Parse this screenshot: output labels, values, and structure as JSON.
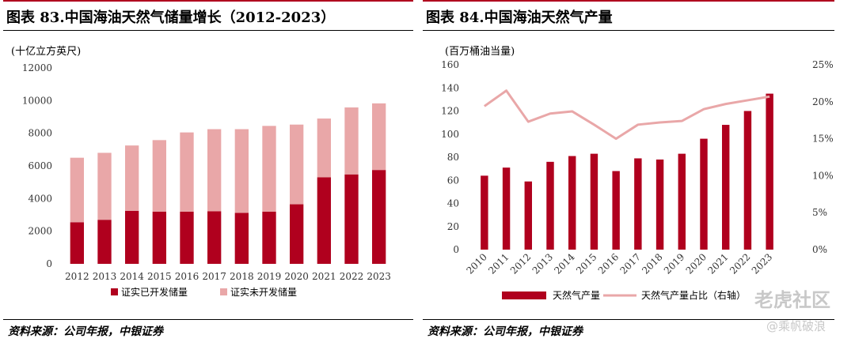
{
  "colors": {
    "dark_red": "#b0001e",
    "light_red": "#e9a7a8",
    "line_red": "#e9a7a8",
    "rule_red": "#b0001e"
  },
  "left_panel": {
    "title": "图表 83.中国海油天然气储量增长（2012-2023）",
    "unit": "(十亿立方英尺)",
    "source": "资料来源：公司年报，中银证券"
  },
  "right_panel": {
    "title": "图表 84.中国海油天然气产量",
    "unit": "(百万桶油当量)",
    "source": "资料来源：公司年报，中银证券"
  },
  "watermark": {
    "line1": "老虎社区",
    "line2": "@乘帆破浪"
  },
  "chart_data": [
    {
      "type": "bar",
      "stacked": true,
      "title": "图表 83.中国海油天然气储量增长（2012-2023）",
      "ylabel": "(十亿立方英尺)",
      "categories": [
        "2012",
        "2013",
        "2014",
        "2015",
        "2016",
        "2017",
        "2018",
        "2019",
        "2020",
        "2021",
        "2022",
        "2023"
      ],
      "ylim": [
        0,
        12000
      ],
      "yticks": [
        "0",
        "2000",
        "4000",
        "6000",
        "8000",
        "10000",
        "12000"
      ],
      "series": [
        {
          "name": "证实已开发储量",
          "color": "#b0001e",
          "values": [
            2550,
            2700,
            3250,
            3200,
            3200,
            3220,
            3120,
            3200,
            3650,
            5300,
            5480,
            5750
          ]
        },
        {
          "name": "证实未开发储量",
          "color": "#e9a7a8",
          "values": [
            3950,
            4100,
            4000,
            4380,
            4850,
            5030,
            5130,
            5250,
            4880,
            3600,
            4100,
            4080
          ]
        }
      ],
      "legend": "bottom",
      "grid": false
    },
    {
      "type": "bar",
      "secondary_type": "line",
      "title": "图表 84.中国海油天然气产量",
      "ylabel": "(百万桶油当量)",
      "categories": [
        "2010",
        "2011",
        "2012",
        "2013",
        "2014",
        "2015",
        "2016",
        "2017",
        "2018",
        "2019",
        "2020",
        "2021",
        "2022",
        "2023"
      ],
      "ylim": [
        0,
        160
      ],
      "yticks": [
        "0",
        "20",
        "40",
        "60",
        "80",
        "100",
        "120",
        "140",
        "160"
      ],
      "y2lim": [
        0,
        25
      ],
      "y2ticks": [
        "0%",
        "5%",
        "10%",
        "15%",
        "20%",
        "25%"
      ],
      "series": [
        {
          "name": "天然气产量",
          "type": "bar",
          "axis": "left",
          "color": "#b0001e",
          "values": [
            64,
            71,
            59,
            76,
            81,
            83,
            68,
            79,
            78,
            83,
            96,
            108,
            120,
            135
          ]
        },
        {
          "name": "天然气产量占比（右轴）",
          "type": "line",
          "axis": "right",
          "color": "#e9a7a8",
          "values": [
            19.4,
            21.5,
            17.3,
            18.4,
            18.7,
            16.9,
            15.0,
            16.9,
            17.2,
            17.4,
            19.0,
            19.7,
            20.2,
            20.7
          ]
        }
      ],
      "legend": "bottom",
      "grid": false
    }
  ]
}
